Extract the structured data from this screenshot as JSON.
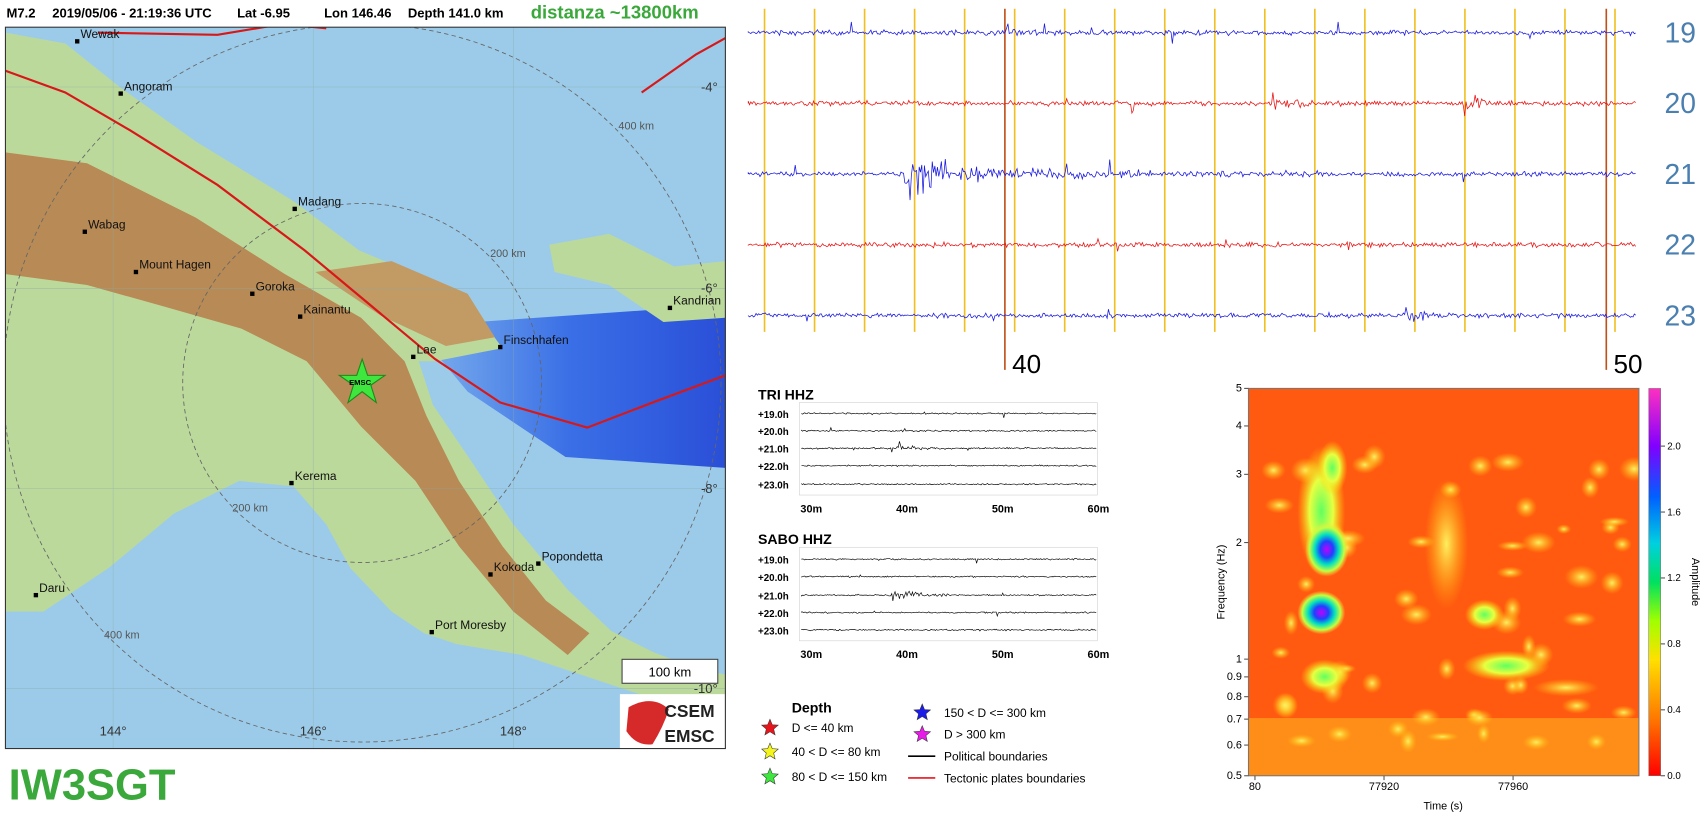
{
  "header": {
    "event": "M7.2",
    "datetime": "2019/05/06 - 21:19:36 UTC",
    "lat": "Lat -6.95",
    "lon": "Lon 146.46",
    "depth": "Depth 141.0 km",
    "distance": "distanza ~13800km"
  },
  "map": {
    "cities": [
      "Wewak",
      "Angoram",
      "Madang",
      "Wabag",
      "Mount Hagen",
      "Goroka",
      "Kainantu",
      "Lae",
      "Finschhafen",
      "Kandrian",
      "Kerema",
      "Kokoda",
      "Popondetta",
      "Port Moresby",
      "Daru"
    ],
    "epicenter_label": "EMSC",
    "lat_labels": [
      "-4°",
      "-6°",
      "-8°",
      "-10°"
    ],
    "lon_labels": [
      "144°",
      "146°",
      "148°"
    ],
    "ring_labels": [
      "400 km",
      "200 km",
      "200 km",
      "400 km"
    ],
    "scale_bar": "100 km",
    "logo": [
      "CSEM",
      "EMSC"
    ]
  },
  "helicorder": {
    "hours": [
      "19",
      "20",
      "21",
      "22",
      "23"
    ],
    "minute_marks": [
      "40",
      "50"
    ]
  },
  "stations": [
    {
      "name": "TRI HHZ",
      "rows": [
        "+19.0h",
        "+20.0h",
        "+21.0h",
        "+22.0h",
        "+23.0h"
      ],
      "time_labels": [
        "30m",
        "40m",
        "50m",
        "60m"
      ]
    },
    {
      "name": "SABO HHZ",
      "rows": [
        "+19.0h",
        "+20.0h",
        "+21.0h",
        "+22.0h",
        "+23.0h"
      ],
      "time_labels": [
        "30m",
        "40m",
        "50m",
        "60m"
      ]
    }
  ],
  "legend": {
    "title": "Depth",
    "items": [
      {
        "label": "D <= 40 km",
        "color": "#e8141c"
      },
      {
        "label": "40 < D <= 80 km",
        "color": "#f5f51e"
      },
      {
        "label": "80 < D <= 150 km",
        "color": "#3ee63e"
      },
      {
        "label": "150 < D <= 300 km",
        "color": "#1c1ce8"
      },
      {
        "label": "D > 300 km",
        "color": "#e81ce8"
      }
    ],
    "lines": [
      {
        "label": "Political boundaries",
        "color": "#000000"
      },
      {
        "label": "Tectonic plates boundaries",
        "color": "#e8141c"
      }
    ]
  },
  "spectrogram": {
    "xlabel": "Time (s)",
    "ylabel": "Frequency (Hz)",
    "colorbar_label": "Amplitude",
    "xlim": [
      77878,
      77999
    ],
    "ylim": [
      0.5,
      5
    ],
    "log_y": true,
    "xticks": [
      {
        "value": 77880,
        "label": "80"
      },
      77920,
      77960
    ],
    "yticks": [
      0.5,
      0.6,
      0.7,
      0.8,
      0.9,
      1,
      2,
      3,
      4,
      5
    ],
    "clim": [
      0,
      2.35
    ],
    "cticks": [
      {
        "value": 0,
        "label": "0.0"
      },
      0.4,
      0.8,
      1.2,
      1.6,
      {
        "value": 2,
        "label": "2.0"
      }
    ]
  },
  "signature": "IW3SGT"
}
